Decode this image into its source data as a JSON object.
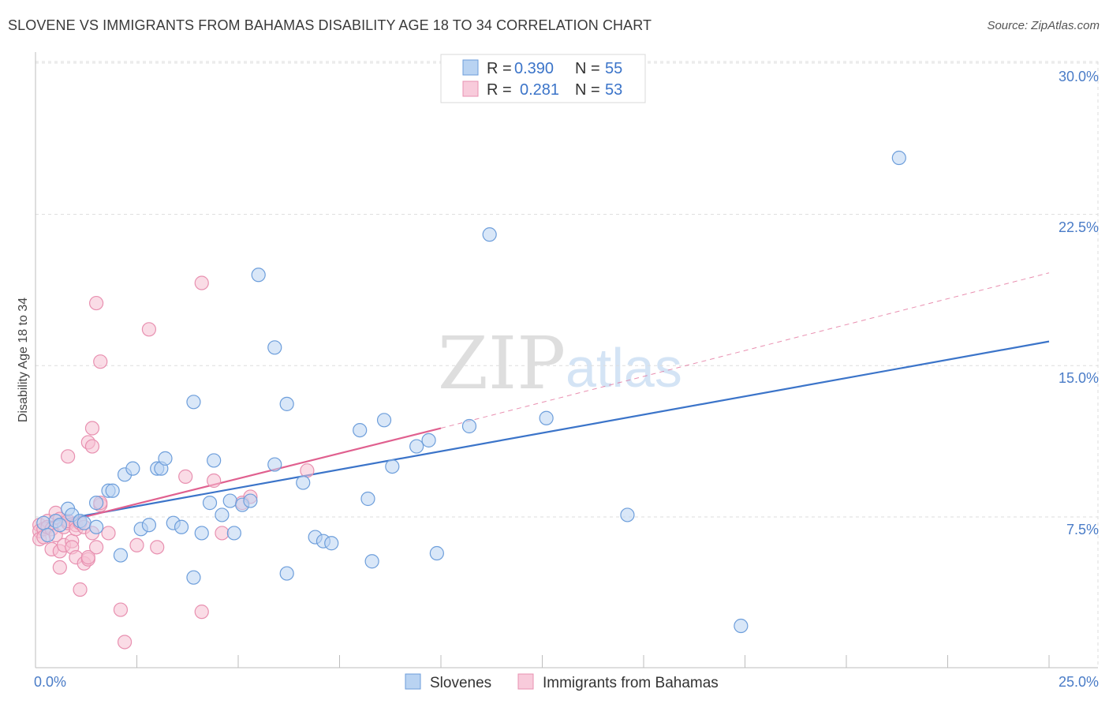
{
  "title": "SLOVENE VS IMMIGRANTS FROM BAHAMAS DISABILITY AGE 18 TO 34 CORRELATION CHART",
  "source": "Source: ZipAtlas.com",
  "watermark": {
    "zip": "ZIP",
    "atlas": "atlas"
  },
  "colors": {
    "blue": "#3b74c9",
    "blue_fill": "#b9d3f2",
    "pink": "#e0608f",
    "pink_fill": "#f5bfd1",
    "grid": "#dddddd",
    "axis_text": "#4a7cc7"
  },
  "legend": {
    "items": [
      {
        "r_label": "R =",
        "r_value": "0.390",
        "n_label": "N =",
        "n_value": "55"
      },
      {
        "r_label": "R =",
        "r_value": "0.281",
        "n_label": "N =",
        "n_value": "53"
      }
    ]
  },
  "chart_data": {
    "type": "scatter",
    "title": "SLOVENE VS IMMIGRANTS FROM BAHAMAS DISABILITY AGE 18 TO 34 CORRELATION CHART",
    "xlabel": "",
    "ylabel": "Disability Age 18 to 34",
    "xlim": [
      0,
      25
    ],
    "ylim": [
      0,
      31
    ],
    "x_tick_labels": [
      "0.0%",
      "25.0%"
    ],
    "y_ticks": [
      7.5,
      15.0,
      22.5,
      30.0
    ],
    "y_tick_labels": [
      "7.5%",
      "15.0%",
      "22.5%",
      "30.0%"
    ],
    "grid": true,
    "series": [
      {
        "name": "Slovenes",
        "color": "#3b74c9",
        "r": 0.39,
        "n": 55,
        "points": [
          [
            0.2,
            7.2
          ],
          [
            0.3,
            6.6
          ],
          [
            0.5,
            7.3
          ],
          [
            0.6,
            7.1
          ],
          [
            0.8,
            7.9
          ],
          [
            0.9,
            7.6
          ],
          [
            1.1,
            7.3
          ],
          [
            1.2,
            7.2
          ],
          [
            1.5,
            7.0
          ],
          [
            1.5,
            8.2
          ],
          [
            1.8,
            8.8
          ],
          [
            1.9,
            8.8
          ],
          [
            2.1,
            5.6
          ],
          [
            2.2,
            9.6
          ],
          [
            2.4,
            9.9
          ],
          [
            2.6,
            6.9
          ],
          [
            2.8,
            7.1
          ],
          [
            3.0,
            9.9
          ],
          [
            3.1,
            9.9
          ],
          [
            3.2,
            10.4
          ],
          [
            3.4,
            7.2
          ],
          [
            3.6,
            7.0
          ],
          [
            3.9,
            4.5
          ],
          [
            3.9,
            13.2
          ],
          [
            4.1,
            6.7
          ],
          [
            4.3,
            8.2
          ],
          [
            4.4,
            10.3
          ],
          [
            4.6,
            7.6
          ],
          [
            4.8,
            8.3
          ],
          [
            4.9,
            6.7
          ],
          [
            5.1,
            8.1
          ],
          [
            5.3,
            8.3
          ],
          [
            5.5,
            19.5
          ],
          [
            5.9,
            15.9
          ],
          [
            5.9,
            10.1
          ],
          [
            6.2,
            13.1
          ],
          [
            6.2,
            4.7
          ],
          [
            6.6,
            9.2
          ],
          [
            6.9,
            6.5
          ],
          [
            7.1,
            6.3
          ],
          [
            7.3,
            6.2
          ],
          [
            8.0,
            11.8
          ],
          [
            8.2,
            8.4
          ],
          [
            8.3,
            5.3
          ],
          [
            8.6,
            12.3
          ],
          [
            8.8,
            10.0
          ],
          [
            9.4,
            11.0
          ],
          [
            9.7,
            11.3
          ],
          [
            9.9,
            5.7
          ],
          [
            10.7,
            12.0
          ],
          [
            11.2,
            21.5
          ],
          [
            12.6,
            12.4
          ],
          [
            14.6,
            7.6
          ],
          [
            17.4,
            2.1
          ],
          [
            21.3,
            25.3
          ]
        ]
      },
      {
        "name": "Immigrants from Bahamas",
        "color": "#e0608f",
        "r": 0.281,
        "n": 53,
        "points": [
          [
            0.1,
            7.1
          ],
          [
            0.1,
            6.8
          ],
          [
            0.1,
            6.4
          ],
          [
            0.2,
            6.9
          ],
          [
            0.2,
            6.5
          ],
          [
            0.3,
            7.3
          ],
          [
            0.3,
            7.0
          ],
          [
            0.4,
            6.9
          ],
          [
            0.4,
            5.9
          ],
          [
            0.5,
            7.7
          ],
          [
            0.5,
            6.6
          ],
          [
            0.6,
            7.4
          ],
          [
            0.6,
            5.8
          ],
          [
            0.6,
            5.0
          ],
          [
            0.7,
            7.0
          ],
          [
            0.7,
            6.1
          ],
          [
            0.8,
            7.2
          ],
          [
            0.8,
            10.5
          ],
          [
            0.8,
            7.3
          ],
          [
            0.9,
            6.3
          ],
          [
            0.9,
            6.0
          ],
          [
            1.0,
            7.1
          ],
          [
            1.0,
            5.5
          ],
          [
            1.0,
            6.9
          ],
          [
            1.1,
            7.2
          ],
          [
            1.1,
            3.9
          ],
          [
            1.2,
            7.0
          ],
          [
            1.2,
            5.2
          ],
          [
            1.3,
            5.4
          ],
          [
            1.3,
            5.5
          ],
          [
            1.3,
            11.2
          ],
          [
            1.4,
            11.0
          ],
          [
            1.4,
            6.7
          ],
          [
            1.4,
            11.9
          ],
          [
            1.5,
            6.0
          ],
          [
            1.5,
            18.1
          ],
          [
            1.6,
            15.2
          ],
          [
            1.6,
            8.1
          ],
          [
            1.6,
            8.2
          ],
          [
            1.8,
            6.7
          ],
          [
            2.1,
            2.9
          ],
          [
            2.2,
            1.3
          ],
          [
            2.5,
            6.1
          ],
          [
            2.8,
            16.8
          ],
          [
            3.0,
            6.0
          ],
          [
            3.7,
            9.5
          ],
          [
            4.1,
            19.1
          ],
          [
            4.1,
            2.8
          ],
          [
            4.4,
            9.3
          ],
          [
            4.6,
            6.7
          ],
          [
            5.1,
            8.2
          ],
          [
            5.3,
            8.5
          ],
          [
            6.7,
            9.8
          ]
        ]
      }
    ],
    "trendlines": [
      {
        "series": "Slovenes",
        "x": [
          0.2,
          25.0
        ],
        "y": [
          7.2,
          16.2
        ],
        "style": "solid"
      },
      {
        "series": "Immigrants from Bahamas",
        "x": [
          0.2,
          10.0
        ],
        "y": [
          7.0,
          11.9
        ],
        "style": "solid"
      },
      {
        "series": "Immigrants from Bahamas",
        "x": [
          10.0,
          25.0
        ],
        "y": [
          11.9,
          19.6
        ],
        "style": "dashed"
      }
    ]
  }
}
